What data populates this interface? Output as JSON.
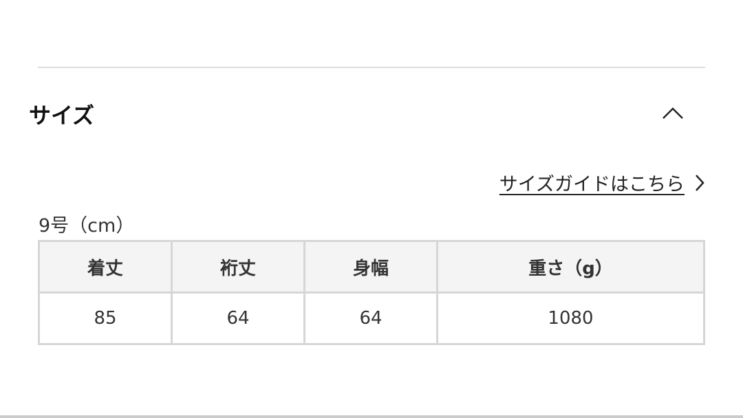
{
  "section": {
    "title": "サイズ",
    "collapse_icon": "chevron-up-icon"
  },
  "guide_link": {
    "label": "サイズガイドはこちら",
    "icon": "chevron-right-icon"
  },
  "table": {
    "caption": "9号（cm）",
    "headers": [
      "着丈",
      "裄丈",
      "身幅",
      "重さ（g）"
    ],
    "rows": [
      [
        "85",
        "64",
        "64",
        "1080"
      ]
    ]
  }
}
